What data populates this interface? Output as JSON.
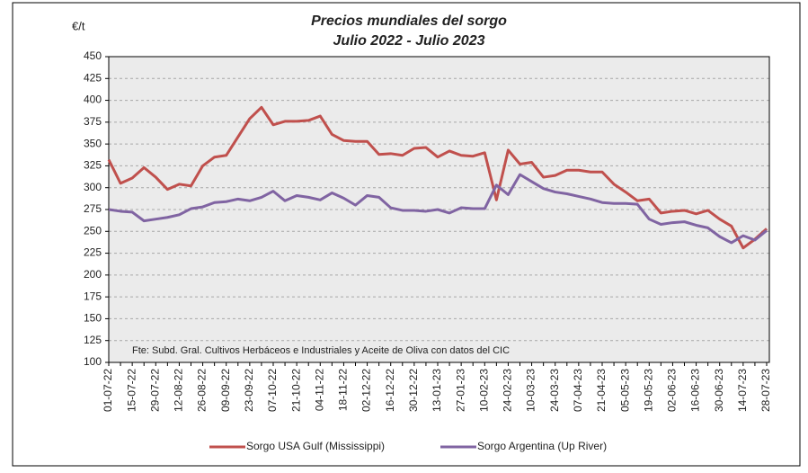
{
  "chart_data": {
    "type": "line",
    "title": "Precios mundiales del sorgo",
    "subtitle": "Julio 2022 - Julio 2023",
    "y_unit": "€/t",
    "annotation": "Fte: Subd. Gral. Cultivos Herbáceos e Industriales y Aceite de Oliva con datos del CIC",
    "categories": [
      "01-07-22",
      null,
      "15-07-22",
      null,
      "29-07-22",
      null,
      "12-08-22",
      null,
      "26-08-22",
      null,
      "09-09-22",
      null,
      "23-09-22",
      null,
      "07-10-22",
      null,
      "21-10-22",
      null,
      "04-11-22",
      null,
      "18-11-22",
      null,
      "02-12-22",
      null,
      "16-12-22",
      null,
      "30-12-22",
      null,
      "13-01-23",
      null,
      "27-01-23",
      null,
      "10-02-23",
      null,
      "24-02-23",
      null,
      "10-03-23",
      null,
      "24-03-23",
      null,
      "07-04-23",
      null,
      "21-04-23",
      null,
      "05-05-23",
      null,
      "19-05-23",
      null,
      "02-06-23",
      null,
      "16-06-23",
      null,
      "30-06-23",
      null,
      "14-07-23",
      null,
      "28-07-23"
    ],
    "series": [
      {
        "name": "Sorgo USA Gulf (Mississippi)",
        "color": "#c0504d",
        "values": [
          332,
          305,
          311,
          323,
          312,
          298,
          304,
          302,
          325,
          335,
          337,
          358,
          379,
          392,
          372,
          376,
          376,
          377,
          382,
          361,
          354,
          353,
          353,
          338,
          339,
          337,
          345,
          346,
          335,
          342,
          337,
          336,
          340,
          286,
          343,
          327,
          329,
          312,
          314,
          320,
          320,
          318,
          318,
          304,
          295,
          285,
          287,
          271,
          273,
          274,
          270,
          274,
          264,
          256,
          231,
          241,
          253
        ]
      },
      {
        "name": "Sorgo Argentina (Up River)",
        "color": "#8064a2",
        "values": [
          275,
          273,
          272,
          262,
          264,
          266,
          269,
          276,
          278,
          283,
          284,
          287,
          285,
          289,
          296,
          285,
          291,
          289,
          286,
          294,
          288,
          280,
          291,
          289,
          277,
          274,
          274,
          273,
          275,
          271,
          277,
          276,
          276,
          303,
          292,
          315,
          307,
          299,
          295,
          293,
          290,
          287,
          283,
          282,
          282,
          281,
          264,
          258,
          260,
          261,
          257,
          254,
          244,
          237,
          245,
          240,
          251
        ]
      }
    ],
    "ylim": [
      100,
      450
    ],
    "yticks": [
      100,
      125,
      150,
      175,
      200,
      225,
      250,
      275,
      300,
      325,
      350,
      375,
      400,
      425,
      450
    ],
    "grid": true
  }
}
